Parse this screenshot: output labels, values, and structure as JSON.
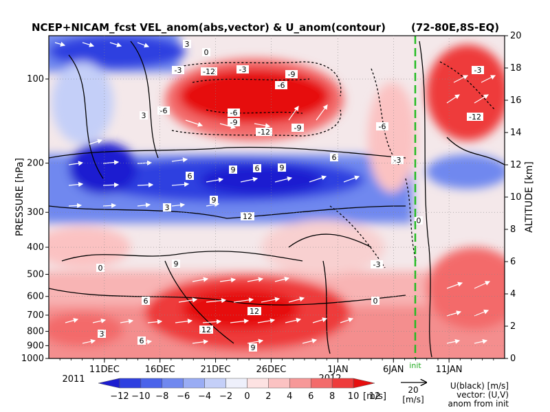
{
  "chart_data": {
    "type": "heatmap",
    "title": "NCEP+NICAM_fcst VEL_anom(abs,vector) & U_anom(contour)",
    "region": "(72-80E,8S-EQ)",
    "ylabel_left": "PRESSURE [hPa]",
    "ylabel_right": "ALTITUDE [km]",
    "x_axis": {
      "ticks": [
        "11DEC",
        "16DEC",
        "21DEC",
        "26DEC",
        "1JAN",
        "6JAN",
        "11JAN"
      ],
      "year_start": "2011",
      "year_end": "2012",
      "init_label": "init"
    },
    "y_left": {
      "scale": "log",
      "range": [
        1000,
        70
      ],
      "ticks": [
        100,
        200,
        300,
        400,
        500,
        600,
        700,
        800,
        900,
        1000
      ]
    },
    "y_right": {
      "range": [
        0,
        20
      ],
      "ticks": [
        0,
        2,
        4,
        6,
        8,
        10,
        12,
        14,
        16,
        18,
        20
      ]
    },
    "colorbar": {
      "levels": [
        -12,
        -10,
        -8,
        -6,
        -4,
        -2,
        0,
        2,
        4,
        6,
        8,
        10,
        12
      ],
      "unit": "[m/s]",
      "colors": [
        "#1c1cd0",
        "#2e3fe0",
        "#4a63ea",
        "#7088ef",
        "#99acf4",
        "#c4cff8",
        "#eef0fb",
        "#fde2e2",
        "#fbc2c2",
        "#f79898",
        "#f36b6b",
        "#ee3b3b",
        "#e60f0f"
      ]
    },
    "vector_legend": {
      "value": "20",
      "unit": "[m/s]",
      "lines": [
        "U(black) [m/s]",
        "vector: (U,V)",
        "anom from init"
      ]
    },
    "contour_labels": {
      "neg": [
        "-3",
        "-12",
        "-3",
        "-9",
        "-6",
        "-9",
        "-12",
        "-6",
        "-6",
        "-3",
        "-6",
        "-3",
        "-12",
        "-9",
        "-3"
      ],
      "pos": [
        "3",
        "0",
        "3",
        "6",
        "9",
        "3",
        "6",
        "9",
        "6",
        "12",
        "9",
        "12",
        "9",
        "6",
        "12",
        "3",
        "6",
        "9",
        "0",
        "0",
        "0"
      ]
    }
  }
}
